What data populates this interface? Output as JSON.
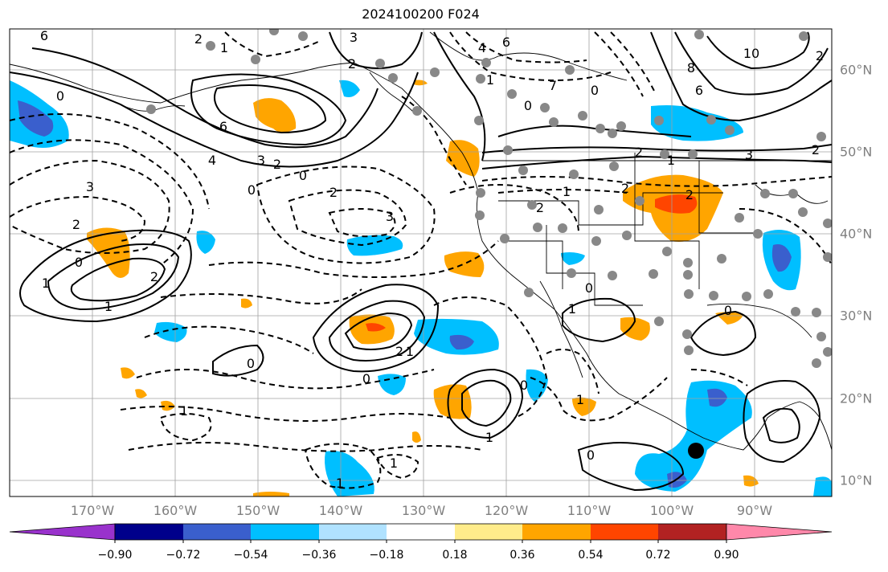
{
  "title": "2024100200 F024",
  "lon_labels": [
    "170°W",
    "160°W",
    "150°W",
    "140°W",
    "130°W",
    "120°W",
    "110°W",
    "100°W",
    "90°W"
  ],
  "lat_labels": [
    "60°N",
    "50°N",
    "40°N",
    "30°N",
    "20°N",
    "10°N"
  ],
  "colorbar": {
    "tick_labels": [
      "−0.90",
      "−0.72",
      "−0.54",
      "−0.36",
      "−0.18",
      "0.18",
      "0.36",
      "0.54",
      "0.72",
      "0.90"
    ],
    "colors": [
      "#9932CC",
      "#00008B",
      "#3A5FCD",
      "#00BFFF",
      "#B0E2FF",
      "#FFFFFF",
      "#FFEC8B",
      "#FFA500",
      "#FF4500",
      "#B22222",
      "#FF88AA"
    ]
  },
  "contour_labels": [
    "6",
    "2",
    "1",
    "3",
    "2",
    "4",
    "6",
    "7",
    "0",
    "8",
    "10",
    "6",
    "2",
    "1",
    "0",
    "0",
    "6",
    "4",
    "3",
    "2",
    "0",
    "2",
    "2",
    "3",
    "1",
    "2",
    "0",
    "3",
    "2",
    "2",
    "2",
    "1",
    "0",
    "2",
    "1",
    "2",
    "1",
    "0",
    "0",
    "3",
    "1",
    "1",
    "0",
    "2",
    "0",
    "1",
    "1",
    "1",
    "0",
    "1",
    "1",
    "0"
  ],
  "colors": {
    "grid": "#A0A0A0",
    "station_marker": "#888888",
    "point_marker": "#000000",
    "contour": "#000000",
    "axis_label": "#808080"
  }
}
